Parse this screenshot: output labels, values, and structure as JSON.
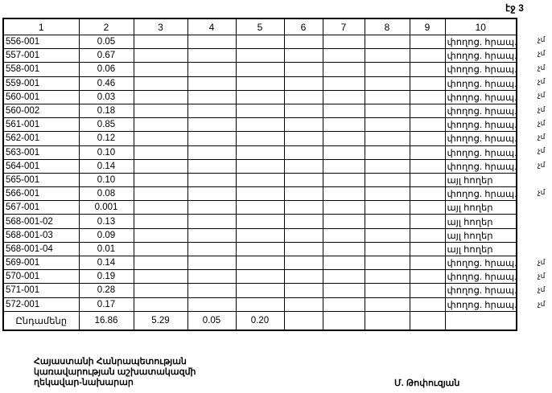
{
  "page_label": "էջ 3",
  "columns": [
    "1",
    "2",
    "3",
    "4",
    "5",
    "6",
    "7",
    "8",
    "9",
    "10"
  ],
  "rows": [
    {
      "id": "556-001",
      "value": "0.05",
      "type": "փողոց. հրապ.",
      "mark": "չմ"
    },
    {
      "id": "557-001",
      "value": "0.67",
      "type": "փողոց. հրապ.",
      "mark": "չմ"
    },
    {
      "id": "558-001",
      "value": "0.06",
      "type": "փողոց. հրապ.",
      "mark": "չմ"
    },
    {
      "id": "559-001",
      "value": "0.46",
      "type": "փողոց. հրապ.",
      "mark": "չմ"
    },
    {
      "id": "560-001",
      "value": "0.03",
      "type": "փողոց. հրապ.",
      "mark": "չմ"
    },
    {
      "id": "560-002",
      "value": "0.18",
      "type": "փողոց. հրապ.",
      "mark": "չմ"
    },
    {
      "id": "561-001",
      "value": "0.85",
      "type": "փողոց. հրապ.",
      "mark": "չմ"
    },
    {
      "id": "562-001",
      "value": "0.12",
      "type": "փողոց. հրապ.",
      "mark": "չմ"
    },
    {
      "id": "563-001",
      "value": "0.10",
      "type": "փողոց. հրապ.",
      "mark": "չմ"
    },
    {
      "id": "564-001",
      "value": "0.14",
      "type": "փողոց. հրապ.",
      "mark": "չմ"
    },
    {
      "id": "565-001",
      "value": "0.10",
      "type": "այլ հողեր",
      "mark": ""
    },
    {
      "id": "566-001",
      "value": "0.08",
      "type": "փողոց. հրապ.",
      "mark": "չմ"
    },
    {
      "id": "567-001",
      "value": "0.001",
      "type": "այլ հողեր",
      "mark": ""
    },
    {
      "id": "568-001-02",
      "value": "0.13",
      "type": "այլ հողեր",
      "mark": ""
    },
    {
      "id": "568-001-03",
      "value": "0.09",
      "type": "այլ հողեր",
      "mark": ""
    },
    {
      "id": "568-001-04",
      "value": "0.01",
      "type": "այլ հողեր",
      "mark": ""
    },
    {
      "id": "569-001",
      "value": "0.14",
      "type": "փողոց. հրապ.",
      "mark": "չմ"
    },
    {
      "id": "570-001",
      "value": "0.19",
      "type": "փողոց. հրապ.",
      "mark": "չմ"
    },
    {
      "id": "571-001",
      "value": "0.28",
      "type": "փողոց. հրապ.",
      "mark": "չմ"
    },
    {
      "id": "572-001",
      "value": "0.17",
      "type": "փողոց. հրապ.",
      "mark": "չմ"
    }
  ],
  "total": {
    "label": "Ընդամենը",
    "col2": "16.86",
    "col3": "5.29",
    "col4": "0.05",
    "col5": "0.20"
  },
  "signature": {
    "line1": "Հայաստանի Հանրապետության",
    "line2": "կառավարության աշխատակազմի",
    "line3": "ղեկավար-նախարար",
    "name": "Մ. Թոփուզյան"
  }
}
